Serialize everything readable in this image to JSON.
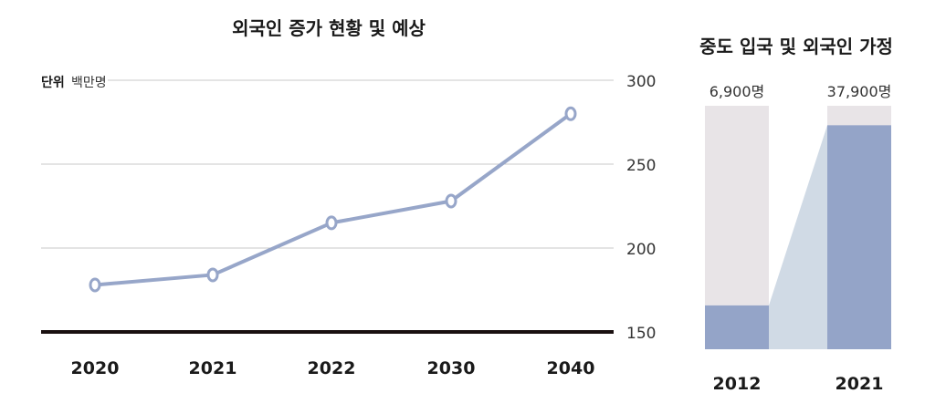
{
  "chart_data": [
    {
      "type": "line",
      "title": "외국인 증가 현황 및 예상",
      "unit_label": "단위",
      "unit_value": "백만명",
      "categories": [
        "2020",
        "2021",
        "2022",
        "2030",
        "2040"
      ],
      "values": [
        178,
        184,
        215,
        228,
        280
      ],
      "ylim": [
        150,
        300
      ],
      "yticks": [
        300,
        250,
        200,
        150
      ],
      "ytick_labels": [
        "300",
        "250",
        "200",
        "150"
      ],
      "grid": true,
      "colors": {
        "line": "#97A6C9",
        "axis": "#1a1010",
        "grid": "#c8c8c8"
      }
    },
    {
      "type": "bar",
      "title": "중도 입국 및 외국인 가정",
      "categories": [
        "2012",
        "2021"
      ],
      "values": [
        6900,
        37900
      ],
      "value_labels": [
        "6,900명",
        "37,900명"
      ],
      "fill_ratio": [
        0.18,
        0.92
      ],
      "colors": {
        "filled": "#94A4C8",
        "background": "#E8E4E7",
        "connector": "#D0DAE5"
      }
    }
  ]
}
